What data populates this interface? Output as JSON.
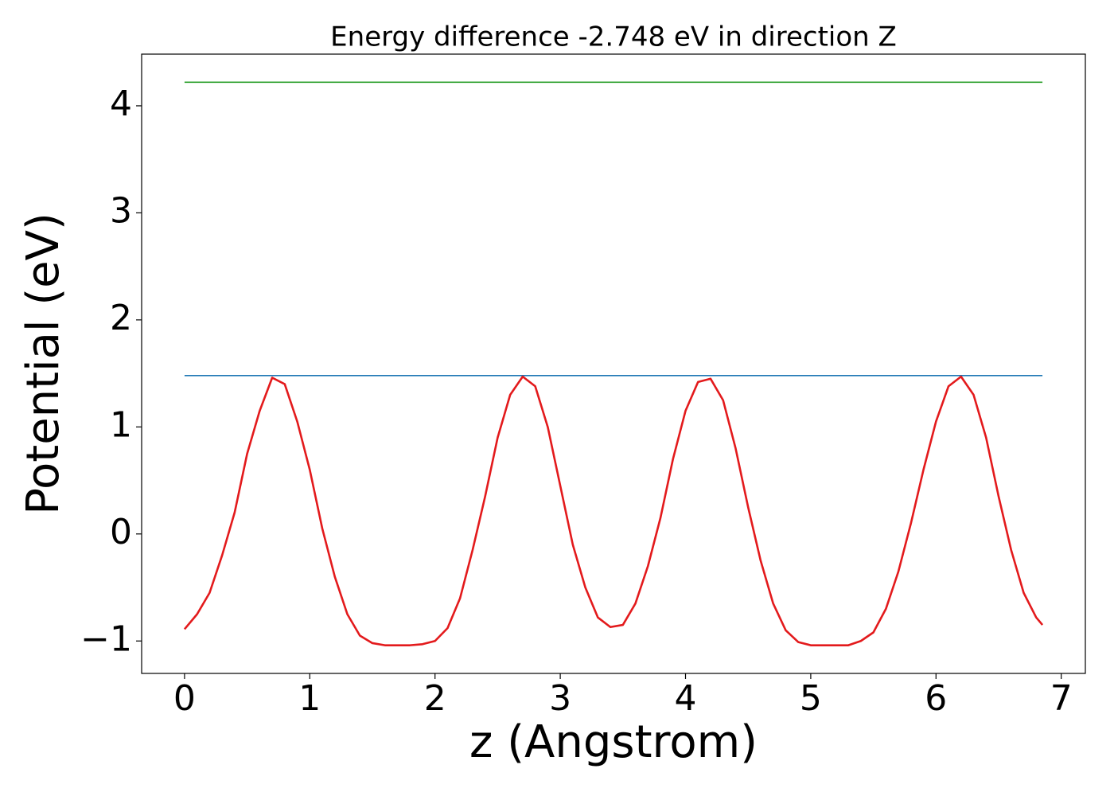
{
  "chart_data": {
    "type": "line",
    "title": "Energy difference -2.748 eV in direction Z",
    "x_label": "z (Angstrom)",
    "y_label": "Potential (eV)",
    "xlim": [
      -0.3425,
      7.1925
    ],
    "ylim": [
      -1.303,
      4.483
    ],
    "xticks": [
      0,
      1,
      2,
      3,
      4,
      5,
      6,
      7
    ],
    "yticks": [
      {
        "value": -1,
        "label": "−1"
      },
      0,
      1,
      2,
      3,
      4
    ],
    "series": [
      {
        "color": "#2ca02c",
        "x": [
          0,
          6.85
        ],
        "values": [
          4.22,
          4.22
        ]
      },
      {
        "color": "#1f77b4",
        "x": [
          0,
          6.85
        ],
        "values": [
          1.48,
          1.48
        ]
      },
      {
        "color": "#e31a1c",
        "x": [
          0,
          0.1,
          0.2,
          0.3,
          0.4,
          0.5,
          0.6,
          0.7,
          0.8,
          0.9,
          1.0,
          1.1,
          1.2,
          1.3,
          1.4,
          1.5,
          1.6,
          1.7,
          1.8,
          1.9,
          2.0,
          2.1,
          2.2,
          2.3,
          2.4,
          2.5,
          2.6,
          2.7,
          2.8,
          2.9,
          3.0,
          3.1,
          3.2,
          3.3,
          3.4,
          3.5,
          3.6,
          3.7,
          3.8,
          3.9,
          4.0,
          4.1,
          4.2,
          4.3,
          4.4,
          4.5,
          4.6,
          4.7,
          4.8,
          4.9,
          5.0,
          5.1,
          5.2,
          5.3,
          5.4,
          5.5,
          5.6,
          5.7,
          5.8,
          5.9,
          6.0,
          6.1,
          6.2,
          6.3,
          6.4,
          6.5,
          6.6,
          6.7,
          6.8,
          6.85
        ],
        "values": [
          -0.89,
          -0.75,
          -0.55,
          -0.2,
          0.2,
          0.75,
          1.15,
          1.46,
          1.4,
          1.05,
          0.6,
          0.05,
          -0.4,
          -0.75,
          -0.95,
          -1.02,
          -1.04,
          -1.04,
          -1.04,
          -1.03,
          -1.0,
          -0.88,
          -0.6,
          -0.15,
          0.35,
          0.9,
          1.3,
          1.47,
          1.38,
          1.0,
          0.45,
          -0.1,
          -0.5,
          -0.78,
          -0.87,
          -0.85,
          -0.65,
          -0.3,
          0.15,
          0.7,
          1.15,
          1.42,
          1.45,
          1.25,
          0.8,
          0.25,
          -0.25,
          -0.65,
          -0.9,
          -1.01,
          -1.04,
          -1.04,
          -1.04,
          -1.04,
          -1.0,
          -0.92,
          -0.7,
          -0.35,
          0.1,
          0.6,
          1.05,
          1.38,
          1.47,
          1.3,
          0.9,
          0.35,
          -0.15,
          -0.55,
          -0.78,
          -0.85
        ]
      }
    ]
  }
}
